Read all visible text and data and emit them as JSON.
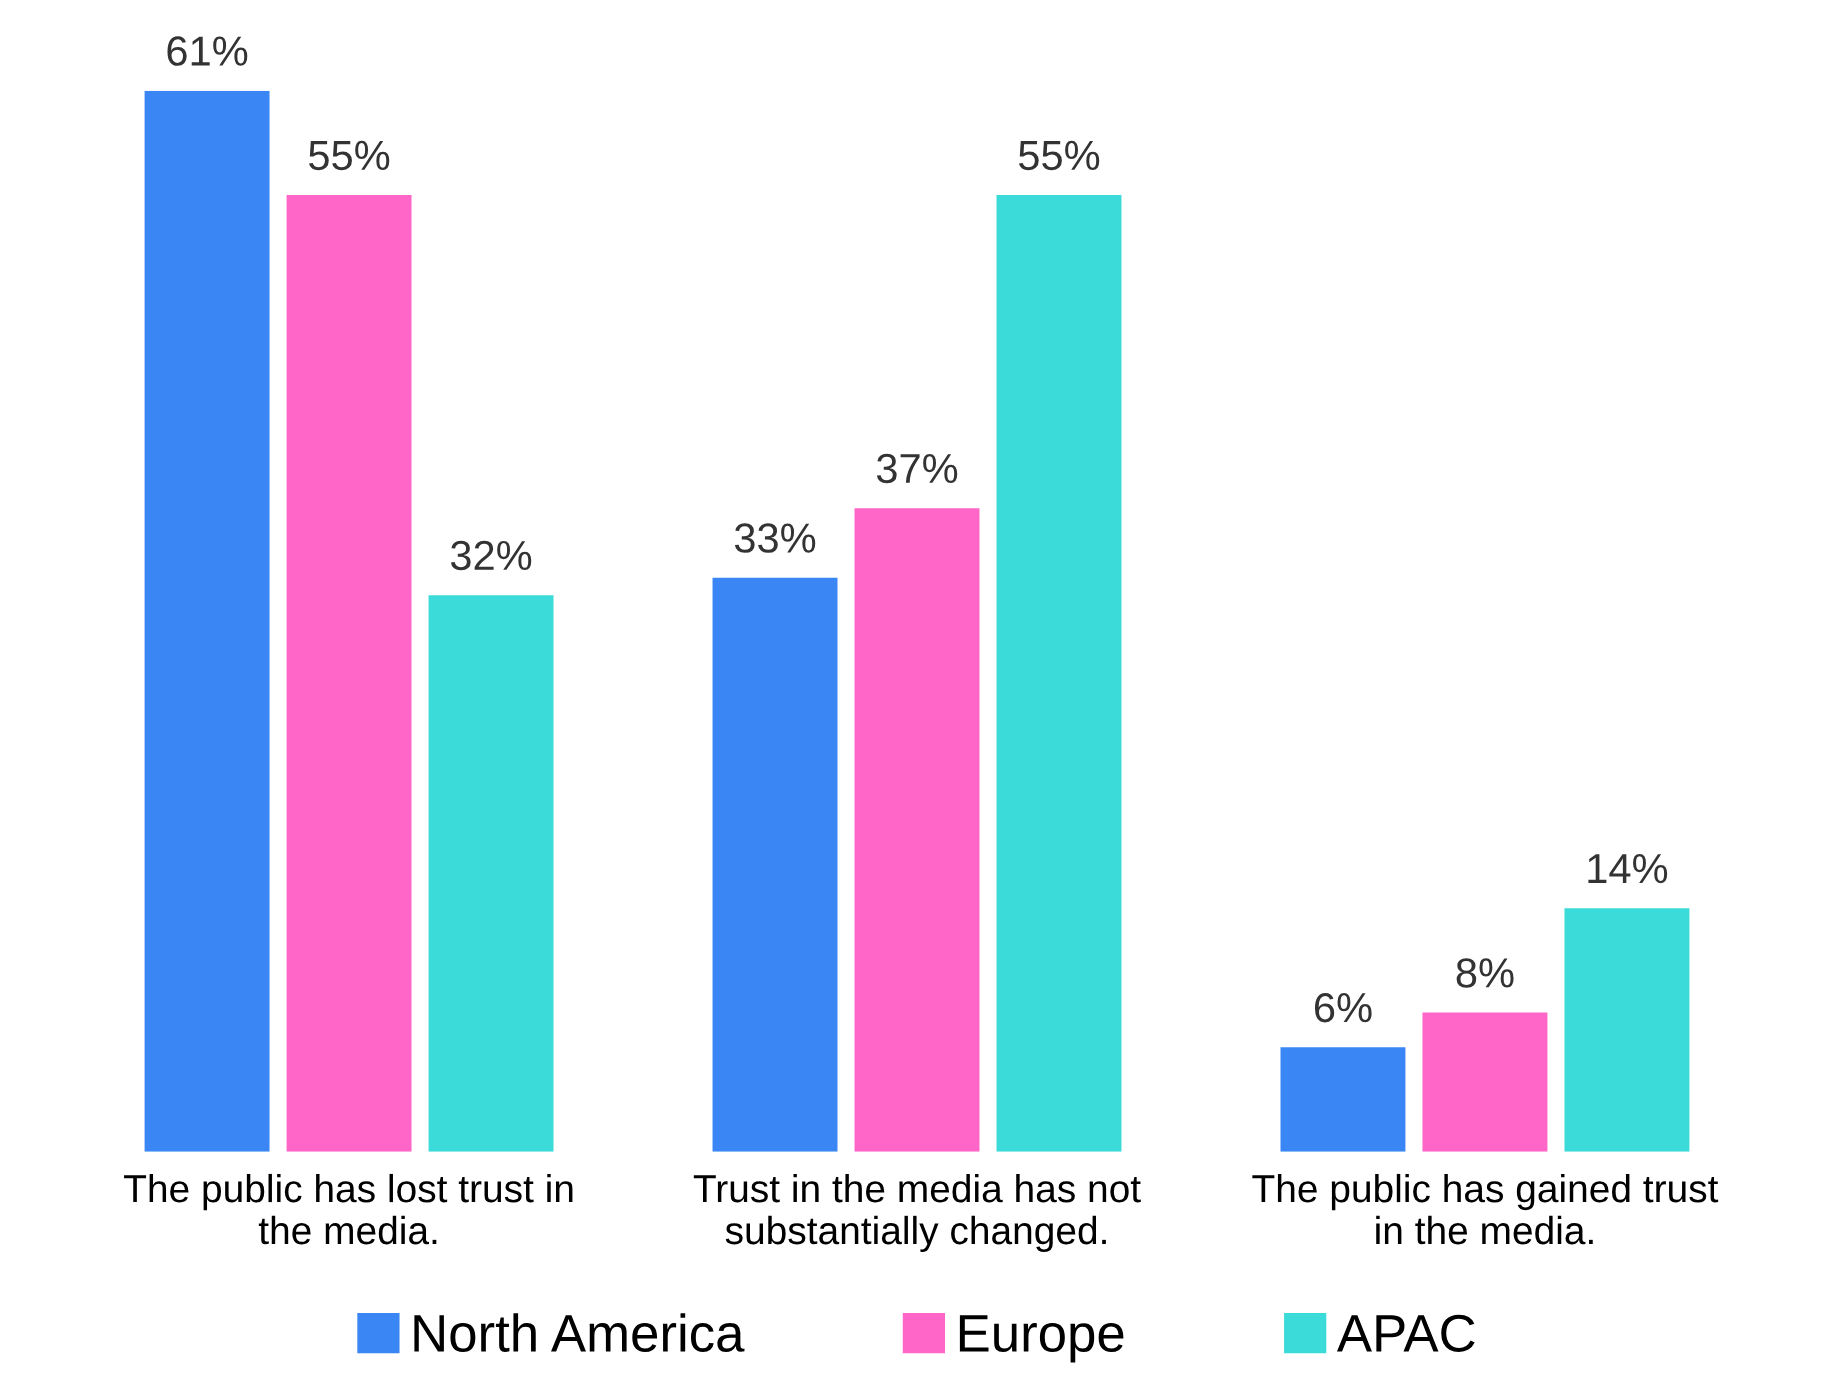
{
  "chart_data": {
    "type": "bar",
    "categories": [
      "The public has lost trust in\nthe media.",
      "Trust in the media has not\nsubstantially changed.",
      "The public has gained trust\nin the media."
    ],
    "series": [
      {
        "name": "North America",
        "color": "#3a86f5",
        "values": [
          61,
          33,
          6
        ],
        "value_labels": [
          "61%",
          "33%",
          "6%"
        ]
      },
      {
        "name": "Europe",
        "color": "#ff66c8",
        "values": [
          55,
          37,
          8
        ],
        "value_labels": [
          "55%",
          "37%",
          "8%"
        ]
      },
      {
        "name": "APAC",
        "color": "#3adbd8",
        "values": [
          32,
          55,
          14
        ],
        "value_labels": [
          "32%",
          "55%",
          "14%"
        ]
      }
    ],
    "legend": "bottom",
    "grid": false
  }
}
